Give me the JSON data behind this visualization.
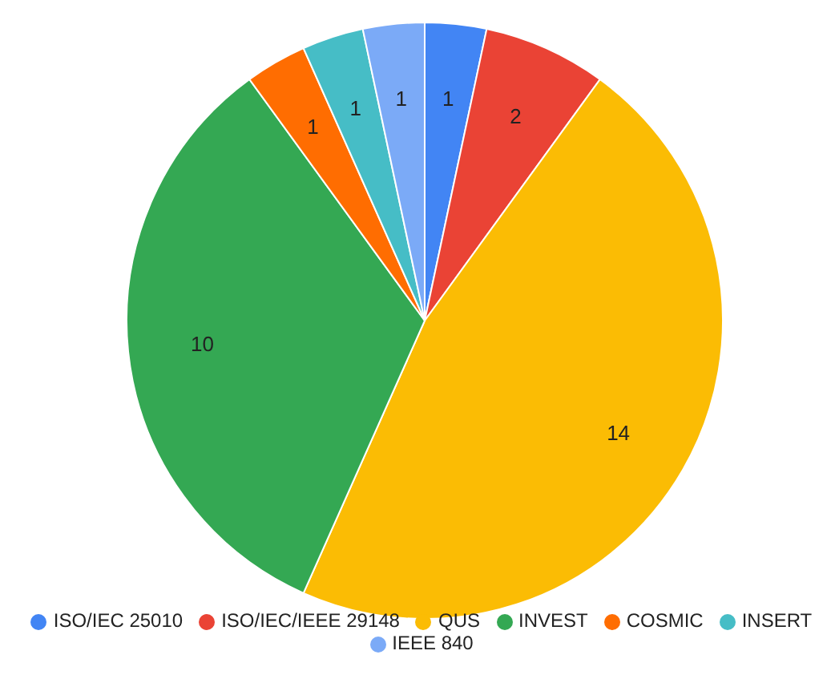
{
  "chart_data": {
    "type": "pie",
    "categories": [
      "ISO/IEC 25010",
      "ISO/IEC/IEEE 29148",
      "QUS",
      "INVEST",
      "COSMIC",
      "INSERT",
      "IEEE 840"
    ],
    "values": [
      1,
      2,
      14,
      10,
      1,
      1,
      1
    ],
    "colors": [
      "#4285f4",
      "#ea4335",
      "#fbbc04",
      "#34a853",
      "#ff6d01",
      "#46bdc6",
      "#7baaf7"
    ],
    "data_labels": true,
    "legend": "bottom"
  }
}
